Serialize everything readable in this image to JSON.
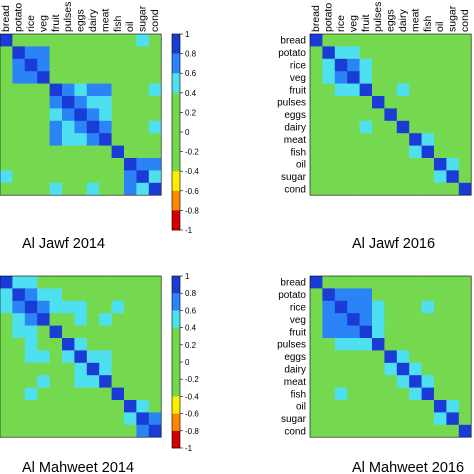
{
  "labels": [
    "bread",
    "potato",
    "rice",
    "veg",
    "fruit",
    "pulses",
    "eggs",
    "dairy",
    "meat",
    "fish",
    "oil",
    "sugar",
    "cond"
  ],
  "colorbar_ticks": [
    "1",
    "0.8",
    "0.6",
    "0.4",
    "0.2",
    "0",
    "-0.2",
    "-0.4",
    "-0.6",
    "-0.8",
    "-1"
  ],
  "colors": {
    "red": "#d50000",
    "orange": "#ff8a00",
    "yellow": "#ffee00",
    "green": "#74d94e",
    "cyan": "#4ee0f0",
    "mid_blue": "#2a84f5",
    "dark_blue": "#1a3bd6"
  },
  "chart_data": [
    {
      "type": "heatmap",
      "title": "Al Jawf 2014",
      "categories": [
        "bread",
        "potato",
        "rice",
        "veg",
        "fruit",
        "pulses",
        "eggs",
        "dairy",
        "meat",
        "fish",
        "oil",
        "sugar",
        "cond"
      ],
      "zlim": [
        -1,
        1
      ],
      "rows": [
        [
          1.0,
          0.3,
          0.25,
          0.25,
          0.05,
          0.2,
          0.1,
          0.1,
          0.2,
          0.15,
          0.35,
          0.45,
          0.25
        ],
        [
          0.3,
          1.0,
          0.7,
          0.75,
          0.3,
          0.3,
          0.2,
          0.1,
          0.3,
          0.15,
          0.2,
          0.3,
          0.2
        ],
        [
          0.25,
          0.7,
          1.0,
          0.65,
          0.2,
          0.25,
          0.1,
          0.1,
          0.2,
          0.1,
          0.1,
          0.2,
          0.15
        ],
        [
          0.25,
          0.75,
          0.65,
          1.0,
          0.25,
          0.3,
          0.2,
          0.15,
          0.25,
          0.1,
          0.1,
          0.2,
          0.15
        ],
        [
          0.05,
          0.3,
          0.2,
          0.25,
          1.0,
          0.75,
          0.55,
          0.75,
          0.75,
          0.15,
          0.15,
          0.3,
          0.45
        ],
        [
          0.2,
          0.3,
          0.25,
          0.3,
          0.75,
          1.0,
          0.65,
          0.5,
          0.55,
          0.1,
          0.15,
          0.2,
          0.3
        ],
        [
          0.1,
          0.2,
          0.1,
          0.2,
          0.55,
          0.65,
          1.0,
          0.6,
          0.55,
          0.15,
          0.1,
          0.2,
          0.3
        ],
        [
          0.1,
          0.1,
          0.1,
          0.15,
          0.75,
          0.5,
          0.6,
          1.0,
          0.7,
          0.2,
          0.2,
          0.3,
          0.45
        ],
        [
          0.2,
          0.3,
          0.2,
          0.25,
          0.75,
          0.55,
          0.55,
          0.7,
          1.0,
          0.2,
          0.2,
          0.2,
          0.25
        ],
        [
          0.15,
          0.15,
          0.1,
          0.1,
          0.15,
          0.1,
          0.15,
          0.2,
          0.2,
          1.0,
          0.3,
          0.25,
          0.25
        ],
        [
          0.35,
          0.2,
          0.1,
          0.1,
          0.15,
          0.15,
          0.1,
          0.2,
          0.2,
          0.3,
          1.0,
          0.75,
          0.7
        ],
        [
          0.45,
          0.3,
          0.2,
          0.2,
          0.3,
          0.2,
          0.2,
          0.3,
          0.2,
          0.25,
          0.75,
          1.0,
          0.55
        ],
        [
          0.25,
          0.2,
          0.15,
          0.15,
          0.45,
          0.3,
          0.3,
          0.45,
          0.25,
          0.25,
          0.7,
          0.55,
          1.0
        ]
      ]
    },
    {
      "type": "heatmap",
      "title": "Al Jawf 2016",
      "categories": [
        "bread",
        "potato",
        "rice",
        "veg",
        "fruit",
        "pulses",
        "eggs",
        "dairy",
        "meat",
        "fish",
        "oil",
        "sugar",
        "cond"
      ],
      "zlim": [
        -1,
        1
      ],
      "rows": [
        [
          1.0,
          0.1,
          0.1,
          0.1,
          0.1,
          0.1,
          0.1,
          0.1,
          0.1,
          0.1,
          0.1,
          0.1,
          0.1
        ],
        [
          0.1,
          1.0,
          0.45,
          0.45,
          0.2,
          0.2,
          0.2,
          0.15,
          0.35,
          0.2,
          0.2,
          0.2,
          0.3
        ],
        [
          0.1,
          0.45,
          1.0,
          0.75,
          0.45,
          0.2,
          0.15,
          0.2,
          0.2,
          0.1,
          0.2,
          0.15,
          0.3
        ],
        [
          0.1,
          0.45,
          0.75,
          1.0,
          0.5,
          0.2,
          0.2,
          0.2,
          0.2,
          0.1,
          0.2,
          0.2,
          0.2
        ],
        [
          0.1,
          0.2,
          0.45,
          0.5,
          1.0,
          0.3,
          0.3,
          0.5,
          0.2,
          0.1,
          0.2,
          0.15,
          0.2
        ],
        [
          0.1,
          0.2,
          0.2,
          0.2,
          0.3,
          1.0,
          0.2,
          0.2,
          0.2,
          0.1,
          0.2,
          0.15,
          0.15
        ],
        [
          0.1,
          0.2,
          0.15,
          0.2,
          0.3,
          0.2,
          1.0,
          0.2,
          0.2,
          0.1,
          0.2,
          0.2,
          0.2
        ],
        [
          0.1,
          0.15,
          0.2,
          0.2,
          0.5,
          0.2,
          0.2,
          1.0,
          0.2,
          0.1,
          0.2,
          0.2,
          0.2
        ],
        [
          0.1,
          0.35,
          0.2,
          0.2,
          0.2,
          0.2,
          0.2,
          0.2,
          1.0,
          0.45,
          0.2,
          0.2,
          0.2
        ],
        [
          0.1,
          0.2,
          0.1,
          0.1,
          0.1,
          0.1,
          0.1,
          0.1,
          0.45,
          1.0,
          0.2,
          0.2,
          0.1
        ],
        [
          0.1,
          0.2,
          0.2,
          0.2,
          0.2,
          0.2,
          0.2,
          0.2,
          0.2,
          0.2,
          1.0,
          0.45,
          0.3
        ],
        [
          0.1,
          0.2,
          0.15,
          0.2,
          0.15,
          0.15,
          0.2,
          0.2,
          0.2,
          0.2,
          0.45,
          1.0,
          0.3
        ],
        [
          0.1,
          0.3,
          0.3,
          0.2,
          0.2,
          0.15,
          0.2,
          0.2,
          0.2,
          0.1,
          0.3,
          0.3,
          1.0
        ]
      ]
    },
    {
      "type": "heatmap",
      "title": "Al Mahweet 2014",
      "categories": [
        "bread",
        "potato",
        "rice",
        "veg",
        "fruit",
        "pulses",
        "eggs",
        "dairy",
        "meat",
        "fish",
        "oil",
        "sugar",
        "cond"
      ],
      "zlim": [
        -1,
        1
      ],
      "rows": [
        [
          1.0,
          0.5,
          0.5,
          0.25,
          0.2,
          0.2,
          0.2,
          0.2,
          0.2,
          0.2,
          0.2,
          0.2,
          0.2
        ],
        [
          0.5,
          1.0,
          0.75,
          0.55,
          0.45,
          0.35,
          0.35,
          0.2,
          0.35,
          0.35,
          0.2,
          0.3,
          0.35
        ],
        [
          0.5,
          0.75,
          1.0,
          0.6,
          0.5,
          0.45,
          0.4,
          0.2,
          0.35,
          0.45,
          0.15,
          0.3,
          0.35
        ],
        [
          0.25,
          0.55,
          0.6,
          1.0,
          0.35,
          0.35,
          0.45,
          0.2,
          0.45,
          0.35,
          0.15,
          0.2,
          0.3
        ],
        [
          0.2,
          0.45,
          0.5,
          0.35,
          1.0,
          0.35,
          0.3,
          0.2,
          0.3,
          0.3,
          0.15,
          0.15,
          0.2
        ],
        [
          0.2,
          0.35,
          0.45,
          0.35,
          0.35,
          1.0,
          0.45,
          0.2,
          0.35,
          0.3,
          0.15,
          0.2,
          0.2
        ],
        [
          0.2,
          0.35,
          0.4,
          0.45,
          0.3,
          0.45,
          1.0,
          0.4,
          0.55,
          0.35,
          0.15,
          0.2,
          0.2
        ],
        [
          0.2,
          0.2,
          0.2,
          0.2,
          0.2,
          0.2,
          0.4,
          1.0,
          0.55,
          0.2,
          0.1,
          0.2,
          0.15
        ],
        [
          0.2,
          0.35,
          0.35,
          0.45,
          0.3,
          0.35,
          0.55,
          0.55,
          1.0,
          0.3,
          0.15,
          0.15,
          0.2
        ],
        [
          0.2,
          0.35,
          0.45,
          0.35,
          0.3,
          0.3,
          0.35,
          0.2,
          0.3,
          1.0,
          0.1,
          0.2,
          0.2
        ],
        [
          0.2,
          0.2,
          0.15,
          0.15,
          0.15,
          0.15,
          0.15,
          0.1,
          0.15,
          0.1,
          1.0,
          0.45,
          0.35
        ],
        [
          0.2,
          0.3,
          0.3,
          0.2,
          0.15,
          0.2,
          0.2,
          0.2,
          0.15,
          0.2,
          0.45,
          1.0,
          0.7
        ],
        [
          0.2,
          0.35,
          0.35,
          0.3,
          0.2,
          0.2,
          0.2,
          0.15,
          0.2,
          0.2,
          0.35,
          0.7,
          1.0
        ]
      ]
    },
    {
      "type": "heatmap",
      "title": "Al Mahweet 2016",
      "categories": [
        "bread",
        "potato",
        "rice",
        "veg",
        "fruit",
        "pulses",
        "eggs",
        "dairy",
        "meat",
        "fish",
        "oil",
        "sugar",
        "cond"
      ],
      "zlim": [
        -1,
        1
      ],
      "rows": [
        [
          1.0,
          0.3,
          0.3,
          0.2,
          0.2,
          0.2,
          0.1,
          0.2,
          0.2,
          0.2,
          0.2,
          0.2,
          0.2
        ],
        [
          0.3,
          1.0,
          0.75,
          0.7,
          0.75,
          0.35,
          0.3,
          0.3,
          0.2,
          0.35,
          0.3,
          0.3,
          0.2
        ],
        [
          0.3,
          0.75,
          1.0,
          0.8,
          0.75,
          0.4,
          0.3,
          0.3,
          0.3,
          0.45,
          0.3,
          0.3,
          0.2
        ],
        [
          0.2,
          0.7,
          0.8,
          1.0,
          0.75,
          0.4,
          0.3,
          0.3,
          0.2,
          0.35,
          0.3,
          0.3,
          0.2
        ],
        [
          0.2,
          0.75,
          0.75,
          0.75,
          1.0,
          0.4,
          0.35,
          0.3,
          0.2,
          0.35,
          0.3,
          0.3,
          0.2
        ],
        [
          0.2,
          0.35,
          0.4,
          0.4,
          0.4,
          1.0,
          0.3,
          0.3,
          0.2,
          0.3,
          0.2,
          0.2,
          0.2
        ],
        [
          0.1,
          0.3,
          0.3,
          0.3,
          0.35,
          0.3,
          1.0,
          0.4,
          0.3,
          0.3,
          0.2,
          0.2,
          0.2
        ],
        [
          0.2,
          0.3,
          0.3,
          0.3,
          0.3,
          0.3,
          0.4,
          1.0,
          0.45,
          0.3,
          0.2,
          0.2,
          0.2
        ],
        [
          0.2,
          0.2,
          0.3,
          0.2,
          0.2,
          0.2,
          0.3,
          0.45,
          1.0,
          0.4,
          0.2,
          0.2,
          0.2
        ],
        [
          0.2,
          0.35,
          0.45,
          0.35,
          0.35,
          0.3,
          0.3,
          0.3,
          0.4,
          1.0,
          0.2,
          0.2,
          0.2
        ],
        [
          0.2,
          0.3,
          0.3,
          0.3,
          0.3,
          0.2,
          0.2,
          0.2,
          0.2,
          0.2,
          1.0,
          0.45,
          0.3
        ],
        [
          0.2,
          0.3,
          0.3,
          0.3,
          0.3,
          0.2,
          0.2,
          0.2,
          0.2,
          0.2,
          0.45,
          1.0,
          0.3
        ],
        [
          0.2,
          0.2,
          0.2,
          0.2,
          0.2,
          0.2,
          0.2,
          0.2,
          0.2,
          0.2,
          0.3,
          0.3,
          1.0
        ]
      ]
    }
  ]
}
